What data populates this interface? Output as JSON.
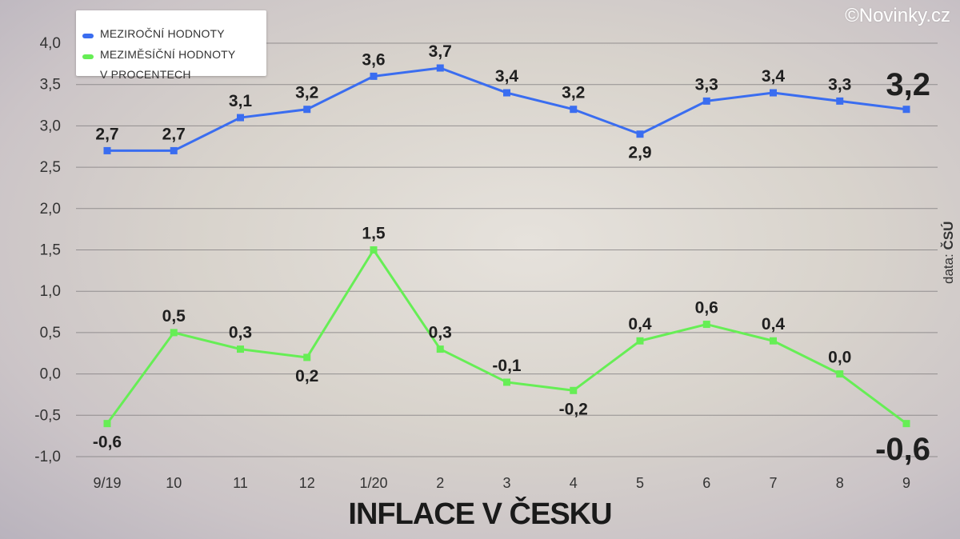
{
  "watermark": "©Novinky.cz",
  "source_prefix": "data: ",
  "source_name": "ČSÚ",
  "chart_data": {
    "type": "line",
    "title": "INFLACE V ČESKU",
    "xlabel": "",
    "ylabel": "",
    "categories": [
      "9/19",
      "10",
      "11",
      "12",
      "1/20",
      "2",
      "3",
      "4",
      "5",
      "6",
      "7",
      "8",
      "9"
    ],
    "ylim": [
      -1.0,
      4.0
    ],
    "yticks": [
      "4,0",
      "3,5",
      "3,0",
      "2,5",
      "2,0",
      "1,5",
      "1,0",
      "0,5",
      "0,0",
      "-0,5",
      "-1,0"
    ],
    "ytick_values": [
      4.0,
      3.5,
      3.0,
      2.5,
      2.0,
      1.5,
      1.0,
      0.5,
      0.0,
      -0.5,
      -1.0
    ],
    "grid": true,
    "legend_position": "top-left",
    "series": [
      {
        "name": "MEZIROČNÍ HODNOTY",
        "color": "#3a6df0",
        "values": [
          2.7,
          2.7,
          3.1,
          3.2,
          3.6,
          3.7,
          3.4,
          3.2,
          2.9,
          3.3,
          3.4,
          3.3,
          3.2
        ],
        "labels": [
          "2,7",
          "2,7",
          "3,1",
          "3,2",
          "3,6",
          "3,7",
          "3,4",
          "3,2",
          "2,9",
          "3,3",
          "3,4",
          "3,3",
          "3,2"
        ]
      },
      {
        "name": "MEZIMĚSÍČNÍ HODNOTY",
        "name_line2": "V PROCENTECH",
        "color": "#66ee55",
        "values": [
          -0.6,
          0.5,
          0.3,
          0.2,
          1.5,
          0.3,
          -0.1,
          -0.2,
          0.4,
          0.6,
          0.4,
          0.0,
          -0.6
        ],
        "labels": [
          "-0,6",
          "0,5",
          "0,3",
          "0,2",
          "1,5",
          "0,3",
          "-0,1",
          "-0,2",
          "0,4",
          "0,6",
          "0,4",
          "0,0",
          "-0,6"
        ]
      }
    ]
  }
}
